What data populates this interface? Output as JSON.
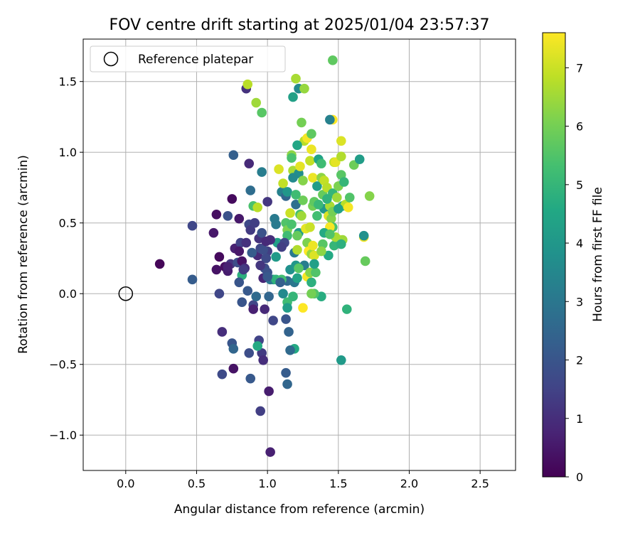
{
  "chart_data": {
    "type": "scatter",
    "title": "FOV centre drift starting at 2025/01/04 23:57:37",
    "xlabel": "Angular distance from reference (arcmin)",
    "ylabel": "Rotation from reference (arcmin)",
    "xlim": [
      -0.3,
      2.75
    ],
    "ylim": [
      -1.25,
      1.8
    ],
    "xticks": [
      0.0,
      0.5,
      1.0,
      1.5,
      2.0,
      2.5
    ],
    "xtick_labels": [
      "0.0",
      "0.5",
      "1.0",
      "1.5",
      "2.0",
      "2.5"
    ],
    "yticks": [
      -1.0,
      -0.5,
      0.0,
      0.5,
      1.0,
      1.5
    ],
    "ytick_labels": [
      "−1.0",
      "−0.5",
      "0.0",
      "0.5",
      "1.0",
      "1.5"
    ],
    "grid": true,
    "legend": {
      "placement": "top-left",
      "entries": [
        "Reference platepar"
      ]
    },
    "reference_point": {
      "x": 0.0,
      "y": 0.0
    },
    "colorbar": {
      "label": "Hours from first FF file",
      "range": [
        0,
        7.6
      ],
      "ticks": [
        0,
        1,
        2,
        3,
        4,
        5,
        6,
        7
      ],
      "tick_labels": [
        "0",
        "1",
        "2",
        "3",
        "4",
        "5",
        "6",
        "7"
      ],
      "colormap": "viridis"
    },
    "points": [
      {
        "x": 0.24,
        "y": 0.21,
        "h": 0.1
      },
      {
        "x": 0.47,
        "y": 0.48,
        "h": 1.6
      },
      {
        "x": 0.47,
        "y": 0.1,
        "h": 2.2
      },
      {
        "x": 0.62,
        "y": 0.43,
        "h": 0.5
      },
      {
        "x": 0.64,
        "y": 0.56,
        "h": 0.3
      },
      {
        "x": 0.66,
        "y": 0.26,
        "h": 0.2
      },
      {
        "x": 0.64,
        "y": 0.17,
        "h": 0.4
      },
      {
        "x": 0.68,
        "y": -0.27,
        "h": 1.0
      },
      {
        "x": 0.72,
        "y": 0.55,
        "h": 1.9
      },
      {
        "x": 0.75,
        "y": 0.67,
        "h": 0.2
      },
      {
        "x": 0.76,
        "y": 0.98,
        "h": 2.3
      },
      {
        "x": 0.7,
        "y": 0.19,
        "h": 0.3
      },
      {
        "x": 0.72,
        "y": 0.16,
        "h": 0.6
      },
      {
        "x": 0.74,
        "y": 0.21,
        "h": 1.2
      },
      {
        "x": 0.77,
        "y": 0.32,
        "h": 0.7
      },
      {
        "x": 0.79,
        "y": 0.22,
        "h": 1.8
      },
      {
        "x": 0.81,
        "y": 0.36,
        "h": 1.5
      },
      {
        "x": 0.8,
        "y": 0.53,
        "h": 0.5
      },
      {
        "x": 0.82,
        "y": 0.13,
        "h": 4.8
      },
      {
        "x": 0.8,
        "y": 0.08,
        "h": 2.0
      },
      {
        "x": 0.82,
        "y": 0.23,
        "h": 0.4
      },
      {
        "x": 0.84,
        "y": 0.18,
        "h": 1.0
      },
      {
        "x": 0.86,
        "y": 0.02,
        "h": 2.1
      },
      {
        "x": 0.85,
        "y": 1.45,
        "h": 1.1
      },
      {
        "x": 0.86,
        "y": 1.48,
        "h": 6.8
      },
      {
        "x": 0.87,
        "y": 0.92,
        "h": 0.9
      },
      {
        "x": 0.88,
        "y": 0.73,
        "h": 2.7
      },
      {
        "x": 0.87,
        "y": 0.49,
        "h": 1.7
      },
      {
        "x": 0.88,
        "y": 0.45,
        "h": 1.3
      },
      {
        "x": 0.9,
        "y": 0.62,
        "h": 5.4
      },
      {
        "x": 0.91,
        "y": 0.5,
        "h": 1.4
      },
      {
        "x": 0.92,
        "y": 1.35,
        "h": 6.5
      },
      {
        "x": 0.94,
        "y": 0.39,
        "h": 1.1
      },
      {
        "x": 0.96,
        "y": 0.43,
        "h": 1.9
      },
      {
        "x": 0.93,
        "y": 0.61,
        "h": 6.8
      },
      {
        "x": 0.96,
        "y": 1.28,
        "h": 5.6
      },
      {
        "x": 0.96,
        "y": 0.86,
        "h": 3.2
      },
      {
        "x": 0.98,
        "y": 0.18,
        "h": 1.8
      },
      {
        "x": 0.97,
        "y": 0.11,
        "h": 0.8
      },
      {
        "x": 0.9,
        "y": -0.08,
        "h": 1.6
      },
      {
        "x": 0.92,
        "y": -0.02,
        "h": 2.6
      },
      {
        "x": 0.9,
        "y": -0.11,
        "h": 0.7
      },
      {
        "x": 0.93,
        "y": 0.27,
        "h": 0.9
      },
      {
        "x": 0.95,
        "y": 0.32,
        "h": 1.6
      },
      {
        "x": 0.99,
        "y": 0.25,
        "h": 2.1
      },
      {
        "x": 1.0,
        "y": 0.65,
        "h": 1.2
      },
      {
        "x": 1.0,
        "y": 0.15,
        "h": 1.9
      },
      {
        "x": 1.01,
        "y": -0.02,
        "h": 2.5
      },
      {
        "x": 0.98,
        "y": -0.11,
        "h": 0.9
      },
      {
        "x": 0.96,
        "y": -0.42,
        "h": 1.3
      },
      {
        "x": 0.97,
        "y": -0.47,
        "h": 1.0
      },
      {
        "x": 0.94,
        "y": -0.33,
        "h": 1.5
      },
      {
        "x": 0.93,
        "y": -0.37,
        "h": 4.6
      },
      {
        "x": 0.87,
        "y": -0.42,
        "h": 1.8
      },
      {
        "x": 0.88,
        "y": -0.6,
        "h": 2.1
      },
      {
        "x": 0.95,
        "y": -0.83,
        "h": 1.4
      },
      {
        "x": 1.01,
        "y": -0.69,
        "h": 0.6
      },
      {
        "x": 1.02,
        "y": -1.12,
        "h": 0.7
      },
      {
        "x": 0.75,
        "y": -0.35,
        "h": 2.0
      },
      {
        "x": 0.76,
        "y": -0.39,
        "h": 2.5
      },
      {
        "x": 0.76,
        "y": -0.53,
        "h": 0.4
      },
      {
        "x": 0.68,
        "y": -0.57,
        "h": 1.7
      },
      {
        "x": 0.66,
        "y": 0.0,
        "h": 1.6
      },
      {
        "x": 0.82,
        "y": -0.06,
        "h": 2.0
      },
      {
        "x": 1.04,
        "y": 0.1,
        "h": 4.5
      },
      {
        "x": 1.04,
        "y": -0.19,
        "h": 1.6
      },
      {
        "x": 1.05,
        "y": 0.53,
        "h": 3.1
      },
      {
        "x": 1.06,
        "y": 0.26,
        "h": 4.1
      },
      {
        "x": 1.07,
        "y": 0.36,
        "h": 4.3
      },
      {
        "x": 1.08,
        "y": 0.88,
        "h": 7.2
      },
      {
        "x": 1.1,
        "y": 0.72,
        "h": 3.3
      },
      {
        "x": 1.11,
        "y": 0.78,
        "h": 6.9
      },
      {
        "x": 1.13,
        "y": 0.69,
        "h": 2.5
      },
      {
        "x": 1.13,
        "y": 0.5,
        "h": 5.5
      },
      {
        "x": 1.14,
        "y": 0.45,
        "h": 6.1
      },
      {
        "x": 1.14,
        "y": 0.41,
        "h": 5.2
      },
      {
        "x": 1.16,
        "y": 0.57,
        "h": 7.0
      },
      {
        "x": 1.17,
        "y": 0.98,
        "h": 6.3
      },
      {
        "x": 1.18,
        "y": 0.87,
        "h": 6.6
      },
      {
        "x": 1.2,
        "y": 0.63,
        "h": 2.8
      },
      {
        "x": 1.19,
        "y": 0.29,
        "h": 3.1
      },
      {
        "x": 1.21,
        "y": 0.31,
        "h": 6.7
      },
      {
        "x": 1.22,
        "y": 0.43,
        "h": 4.2
      },
      {
        "x": 1.22,
        "y": 0.85,
        "h": 3.7
      },
      {
        "x": 1.23,
        "y": 0.56,
        "h": 5.3
      },
      {
        "x": 1.2,
        "y": 1.52,
        "h": 6.6
      },
      {
        "x": 1.22,
        "y": 1.45,
        "h": 3.6
      },
      {
        "x": 1.18,
        "y": 1.39,
        "h": 4.3
      },
      {
        "x": 1.26,
        "y": 1.45,
        "h": 6.4
      },
      {
        "x": 1.24,
        "y": 1.21,
        "h": 6.0
      },
      {
        "x": 1.26,
        "y": 1.08,
        "h": 6.8
      },
      {
        "x": 1.28,
        "y": 1.1,
        "h": 7.5
      },
      {
        "x": 1.31,
        "y": 1.13,
        "h": 5.7
      },
      {
        "x": 1.21,
        "y": 1.05,
        "h": 4.5
      },
      {
        "x": 1.3,
        "y": 0.94,
        "h": 6.9
      },
      {
        "x": 1.31,
        "y": 1.02,
        "h": 7.4
      },
      {
        "x": 1.25,
        "y": 0.8,
        "h": 6.2
      },
      {
        "x": 1.25,
        "y": 0.66,
        "h": 5.9
      },
      {
        "x": 1.24,
        "y": 0.55,
        "h": 6.5
      },
      {
        "x": 1.27,
        "y": 0.46,
        "h": 7.3
      },
      {
        "x": 1.28,
        "y": 0.36,
        "h": 6.1
      },
      {
        "x": 1.29,
        "y": 0.3,
        "h": 7.6
      },
      {
        "x": 1.31,
        "y": 0.28,
        "h": 6.4
      },
      {
        "x": 1.32,
        "y": 0.34,
        "h": 7.4
      },
      {
        "x": 1.33,
        "y": 0.27,
        "h": 7.2
      },
      {
        "x": 1.32,
        "y": 0.62,
        "h": 6.0
      },
      {
        "x": 1.33,
        "y": 0.65,
        "h": 5.7
      },
      {
        "x": 1.35,
        "y": 0.76,
        "h": 4.2
      },
      {
        "x": 1.32,
        "y": 0.82,
        "h": 7.4
      },
      {
        "x": 1.36,
        "y": 0.95,
        "h": 4.4
      },
      {
        "x": 1.38,
        "y": 0.92,
        "h": 5.2
      },
      {
        "x": 1.38,
        "y": 0.82,
        "h": 6.3
      },
      {
        "x": 1.4,
        "y": 0.8,
        "h": 6.9
      },
      {
        "x": 1.39,
        "y": 0.7,
        "h": 5.8
      },
      {
        "x": 1.4,
        "y": 0.6,
        "h": 4.0
      },
      {
        "x": 1.42,
        "y": 0.75,
        "h": 6.8
      },
      {
        "x": 1.43,
        "y": 0.55,
        "h": 7.2
      },
      {
        "x": 1.44,
        "y": 0.62,
        "h": 6.6
      },
      {
        "x": 1.45,
        "y": 0.53,
        "h": 6.2
      },
      {
        "x": 1.46,
        "y": 0.47,
        "h": 5.4
      },
      {
        "x": 1.44,
        "y": 0.47,
        "h": 7.5
      },
      {
        "x": 1.47,
        "y": 0.93,
        "h": 6.9
      },
      {
        "x": 1.48,
        "y": 0.93,
        "h": 7.3
      },
      {
        "x": 1.46,
        "y": 0.71,
        "h": 5.0
      },
      {
        "x": 1.49,
        "y": 0.68,
        "h": 6.5
      },
      {
        "x": 1.5,
        "y": 0.76,
        "h": 6.1
      },
      {
        "x": 1.52,
        "y": 0.97,
        "h": 6.7
      },
      {
        "x": 1.52,
        "y": 0.84,
        "h": 5.6
      },
      {
        "x": 1.53,
        "y": 0.62,
        "h": 4.7
      },
      {
        "x": 1.55,
        "y": 0.63,
        "h": 6.8
      },
      {
        "x": 1.57,
        "y": 0.61,
        "h": 7.5
      },
      {
        "x": 1.58,
        "y": 0.68,
        "h": 5.5
      },
      {
        "x": 1.51,
        "y": 0.38,
        "h": 7.4
      },
      {
        "x": 1.53,
        "y": 0.38,
        "h": 6.5
      },
      {
        "x": 1.46,
        "y": 1.23,
        "h": 7.6
      },
      {
        "x": 1.46,
        "y": 1.65,
        "h": 5.7
      },
      {
        "x": 1.44,
        "y": 1.23,
        "h": 3.3
      },
      {
        "x": 1.52,
        "y": 1.08,
        "h": 7.2
      },
      {
        "x": 1.61,
        "y": 0.91,
        "h": 5.9
      },
      {
        "x": 1.65,
        "y": 0.95,
        "h": 4.2
      },
      {
        "x": 1.68,
        "y": 0.4,
        "h": 7.5
      },
      {
        "x": 1.68,
        "y": 0.41,
        "h": 3.8
      },
      {
        "x": 1.69,
        "y": 0.23,
        "h": 5.8
      },
      {
        "x": 1.72,
        "y": 0.69,
        "h": 6.2
      },
      {
        "x": 1.56,
        "y": -0.11,
        "h": 4.9
      },
      {
        "x": 1.52,
        "y": -0.47,
        "h": 4.1
      },
      {
        "x": 1.38,
        "y": -0.02,
        "h": 4.7
      },
      {
        "x": 1.33,
        "y": 0.0,
        "h": 5.5
      },
      {
        "x": 1.31,
        "y": 0.0,
        "h": 6.0
      },
      {
        "x": 1.25,
        "y": -0.1,
        "h": 7.6
      },
      {
        "x": 1.19,
        "y": -0.39,
        "h": 4.6
      },
      {
        "x": 1.16,
        "y": -0.4,
        "h": 2.6
      },
      {
        "x": 1.14,
        "y": -0.06,
        "h": 5.2
      },
      {
        "x": 1.14,
        "y": -0.1,
        "h": 4.2
      },
      {
        "x": 1.13,
        "y": -0.18,
        "h": 2.0
      },
      {
        "x": 1.15,
        "y": -0.27,
        "h": 2.4
      },
      {
        "x": 1.13,
        "y": -0.56,
        "h": 2.2
      },
      {
        "x": 1.14,
        "y": -0.64,
        "h": 2.5
      },
      {
        "x": 1.18,
        "y": -0.02,
        "h": 5.0
      },
      {
        "x": 1.11,
        "y": 0.0,
        "h": 3.6
      },
      {
        "x": 1.14,
        "y": 0.09,
        "h": 2.6
      },
      {
        "x": 1.16,
        "y": 0.17,
        "h": 3.8
      },
      {
        "x": 1.19,
        "y": 0.08,
        "h": 3.0
      },
      {
        "x": 1.21,
        "y": 0.11,
        "h": 4.4
      },
      {
        "x": 1.2,
        "y": 0.2,
        "h": 4.0
      },
      {
        "x": 1.26,
        "y": 0.2,
        "h": 3.2
      },
      {
        "x": 1.28,
        "y": 0.12,
        "h": 7.5
      },
      {
        "x": 1.3,
        "y": 0.15,
        "h": 6.2
      },
      {
        "x": 1.31,
        "y": 0.08,
        "h": 4.8
      },
      {
        "x": 1.34,
        "y": 0.15,
        "h": 5.5
      },
      {
        "x": 1.33,
        "y": 0.21,
        "h": 4.3
      },
      {
        "x": 1.39,
        "y": 0.35,
        "h": 5.6
      },
      {
        "x": 1.43,
        "y": 0.27,
        "h": 4.6
      },
      {
        "x": 1.47,
        "y": 0.34,
        "h": 5.0
      },
      {
        "x": 1.48,
        "y": 0.4,
        "h": 6.6
      },
      {
        "x": 1.17,
        "y": 0.49,
        "h": 5.4
      },
      {
        "x": 1.21,
        "y": 0.41,
        "h": 5.8
      },
      {
        "x": 1.06,
        "y": 0.49,
        "h": 3.1
      },
      {
        "x": 1.02,
        "y": 0.1,
        "h": 3.0
      },
      {
        "x": 1.06,
        "y": 0.1,
        "h": 4.9
      },
      {
        "x": 1.1,
        "y": 0.1,
        "h": 5.3
      },
      {
        "x": 1.02,
        "y": 0.38,
        "h": 1.0
      },
      {
        "x": 1.0,
        "y": 0.3,
        "h": 1.4
      },
      {
        "x": 0.99,
        "y": 0.25,
        "h": 1.7
      },
      {
        "x": 0.95,
        "y": 0.2,
        "h": 1.2
      },
      {
        "x": 0.97,
        "y": 0.31,
        "h": 1.8
      },
      {
        "x": 0.99,
        "y": 0.37,
        "h": 0.9
      },
      {
        "x": 1.18,
        "y": 0.82,
        "h": 3.6
      },
      {
        "x": 1.14,
        "y": 0.72,
        "h": 4.0
      },
      {
        "x": 1.2,
        "y": 0.7,
        "h": 5.2
      },
      {
        "x": 1.36,
        "y": 0.63,
        "h": 5.1
      },
      {
        "x": 1.4,
        "y": 0.43,
        "h": 4.6
      },
      {
        "x": 1.44,
        "y": 0.42,
        "h": 5.5
      },
      {
        "x": 1.35,
        "y": 0.55,
        "h": 5.3
      },
      {
        "x": 1.42,
        "y": 0.67,
        "h": 4.9
      },
      {
        "x": 1.3,
        "y": 0.47,
        "h": 7.0
      },
      {
        "x": 1.17,
        "y": 0.96,
        "h": 5.4
      },
      {
        "x": 1.23,
        "y": 0.9,
        "h": 7.3
      },
      {
        "x": 1.52,
        "y": 0.35,
        "h": 4.8
      },
      {
        "x": 1.38,
        "y": 0.3,
        "h": 6.3
      },
      {
        "x": 1.46,
        "y": 0.58,
        "h": 6.0
      },
      {
        "x": 1.5,
        "y": 0.6,
        "h": 4.3
      },
      {
        "x": 1.54,
        "y": 0.79,
        "h": 5.0
      },
      {
        "x": 1.22,
        "y": 0.18,
        "h": 5.6
      },
      {
        "x": 1.12,
        "y": 0.36,
        "h": 1.6
      },
      {
        "x": 0.8,
        "y": 0.3,
        "h": 0.5
      },
      {
        "x": 0.72,
        "y": 0.19,
        "h": 0.7
      },
      {
        "x": 0.85,
        "y": 0.36,
        "h": 1.1
      },
      {
        "x": 0.89,
        "y": 0.29,
        "h": 2.2
      },
      {
        "x": 0.83,
        "y": 0.17,
        "h": 1.3
      },
      {
        "x": 1.1,
        "y": 0.33,
        "h": 1.4
      },
      {
        "x": 1.09,
        "y": 0.08,
        "h": 2.3
      },
      {
        "x": 1.0,
        "y": 0.12,
        "h": 2.1
      }
    ]
  }
}
